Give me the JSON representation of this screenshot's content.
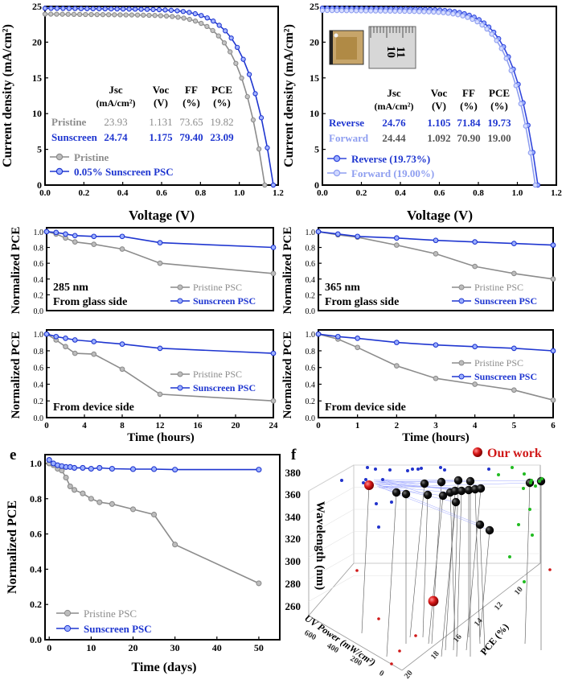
{
  "colors": {
    "pristine": "#8c8c8c",
    "sunscreen": "#1f36d0",
    "reverse": "#3146dc",
    "forward": "#8e9ef0",
    "our_work": "#d01818",
    "green": "#22bb22",
    "black": "#111111"
  },
  "chart_data": [
    {
      "id": "a",
      "type": "line",
      "title": "",
      "xlabel": "Voltage (V)",
      "ylabel": "Current density (mA/cm²)",
      "xlim": [
        0,
        1.2
      ],
      "ylim": [
        0,
        25
      ],
      "xticks": [
        "0.0",
        "0.2",
        "0.4",
        "0.6",
        "0.8",
        "1.0",
        "1.2"
      ],
      "yticks": [
        "0",
        "5",
        "10",
        "15",
        "20",
        "25"
      ],
      "legend": [
        "Pristine",
        "0.05% Sunscreen PSC"
      ],
      "table": {
        "headers": [
          "Jsc",
          "Voc",
          "FF",
          "PCE"
        ],
        "units": [
          "(mA/cm²)",
          "(V)",
          "(%)",
          "(%)"
        ],
        "rows": [
          {
            "label": "Pristine",
            "values": [
              "23.93",
              "1.131",
              "73.65",
              "19.82"
            ]
          },
          {
            "label": "Sunscreen",
            "values": [
              "24.74",
              "1.175",
              "79.40",
              "23.09"
            ]
          }
        ]
      },
      "series": [
        {
          "name": "Pristine",
          "jsc": 23.93,
          "voc": 1.131
        },
        {
          "name": "0.05% Sunscreen PSC",
          "jsc": 24.74,
          "voc": 1.175
        }
      ]
    },
    {
      "id": "b",
      "type": "line",
      "title": "",
      "xlabel": "Voltage (V)",
      "ylabel": "Current density (mA/cm²)",
      "xlim": [
        0,
        1.2
      ],
      "ylim": [
        0,
        25
      ],
      "xticks": [
        "0.0",
        "0.2",
        "0.4",
        "0.6",
        "0.8",
        "1.0",
        "1.2"
      ],
      "yticks": [
        "0",
        "5",
        "10",
        "15",
        "20",
        "25"
      ],
      "legend": [
        "Reverse (19.73%)",
        "Forward (19.00%)"
      ],
      "inset_ruler_labels": [
        "10",
        "11"
      ],
      "table": {
        "headers": [
          "Jsc",
          "Voc",
          "FF",
          "PCE"
        ],
        "units": [
          "(mA/cm²)",
          "(V)",
          "(%)",
          "(%)"
        ],
        "rows": [
          {
            "label": "Reverse",
            "values": [
              "24.76",
              "1.105",
              "71.84",
              "19.73"
            ]
          },
          {
            "label": "Forward",
            "values": [
              "24.44",
              "1.092",
              "70.90",
              "19.00"
            ]
          }
        ]
      },
      "series": [
        {
          "name": "Reverse (19.73%)",
          "jsc": 24.76,
          "voc": 1.105
        },
        {
          "name": "Forward (19.00%)",
          "jsc": 24.44,
          "voc": 1.092
        }
      ]
    },
    {
      "id": "c",
      "type": "line",
      "xlabel": "Time (hours)",
      "ylabel": "Normalized PCE",
      "xticks": [
        "0",
        "4",
        "8",
        "12",
        "16",
        "20",
        "24"
      ],
      "yticks": [
        "0.0",
        "0.2",
        "0.4",
        "0.6",
        "0.8",
        "1.0"
      ],
      "xlim": [
        0,
        24
      ],
      "ylim": [
        0,
        1.05
      ],
      "top": {
        "labels": [
          "285 nm",
          "From glass side"
        ],
        "legend": [
          "Pristine PSC",
          "Sunscreen PSC"
        ],
        "series": [
          {
            "name": "Pristine PSC",
            "x": [
              0,
              1,
              2,
              3,
              5,
              8,
              12,
              24
            ],
            "values": [
              1.0,
              0.97,
              0.92,
              0.87,
              0.84,
              0.78,
              0.6,
              0.47
            ]
          },
          {
            "name": "Sunscreen PSC",
            "x": [
              0,
              1,
              2,
              3,
              5,
              8,
              12,
              24
            ],
            "values": [
              1.0,
              0.99,
              0.97,
              0.95,
              0.94,
              0.94,
              0.86,
              0.8
            ]
          }
        ]
      },
      "bottom": {
        "labels": [
          "From device side"
        ],
        "legend": [
          "Pristine PSC",
          "Sunscreen PSC"
        ],
        "series": [
          {
            "name": "Pristine PSC",
            "x": [
              0,
              1,
              2,
              3,
              5,
              8,
              12,
              24
            ],
            "values": [
              1.0,
              0.93,
              0.85,
              0.77,
              0.76,
              0.58,
              0.28,
              0.2
            ]
          },
          {
            "name": "Sunscreen PSC",
            "x": [
              0,
              1,
              2,
              3,
              5,
              8,
              12,
              24
            ],
            "values": [
              1.0,
              0.97,
              0.95,
              0.93,
              0.91,
              0.88,
              0.83,
              0.77
            ]
          }
        ]
      }
    },
    {
      "id": "d",
      "type": "line",
      "xlabel": "Time (hours)",
      "ylabel": "Normalized PCE",
      "xticks": [
        "0",
        "1",
        "2",
        "3",
        "4",
        "5",
        "6"
      ],
      "yticks": [
        "0.0",
        "0.2",
        "0.4",
        "0.6",
        "0.8",
        "1.0"
      ],
      "xlim": [
        0,
        6
      ],
      "ylim": [
        0,
        1.05
      ],
      "top": {
        "labels": [
          "365 nm",
          "From glass side"
        ],
        "legend": [
          "Pristine PSC",
          "Sunscreen PSC"
        ],
        "series": [
          {
            "name": "Pristine PSC",
            "x": [
              0,
              0.5,
              1,
              2,
              3,
              4,
              5,
              6
            ],
            "values": [
              1.0,
              0.96,
              0.93,
              0.83,
              0.72,
              0.56,
              0.47,
              0.4
            ]
          },
          {
            "name": "Sunscreen PSC",
            "x": [
              0,
              0.5,
              1,
              2,
              3,
              4,
              5,
              6
            ],
            "values": [
              1.0,
              0.97,
              0.94,
              0.92,
              0.89,
              0.87,
              0.85,
              0.83
            ]
          }
        ]
      },
      "bottom": {
        "labels": [
          "From device side"
        ],
        "legend": [
          "Pristine PSC",
          "Sunscreen PSC"
        ],
        "series": [
          {
            "name": "Pristine PSC",
            "x": [
              0,
              0.5,
              1,
              2,
              3,
              4,
              5,
              6
            ],
            "values": [
              1.0,
              0.94,
              0.84,
              0.62,
              0.47,
              0.4,
              0.33,
              0.21
            ]
          },
          {
            "name": "Sunscreen PSC",
            "x": [
              0,
              0.5,
              1,
              2,
              3,
              4,
              5,
              6
            ],
            "values": [
              1.0,
              0.97,
              0.95,
              0.9,
              0.87,
              0.85,
              0.83,
              0.8
            ]
          }
        ]
      }
    },
    {
      "id": "e",
      "type": "line",
      "panel_label": "e",
      "xlabel": "Time (days)",
      "ylabel": "Normalized PCE",
      "xticks": [
        "0",
        "10",
        "20",
        "30",
        "40",
        "50"
      ],
      "yticks": [
        "0.0",
        "0.2",
        "0.4",
        "0.6",
        "0.8",
        "1.0"
      ],
      "xlim": [
        -1,
        55
      ],
      "ylim": [
        0,
        1.05
      ],
      "legend": [
        "Pristine PSC",
        "Sunscreen PSC"
      ],
      "series": [
        {
          "name": "Pristine PSC",
          "x": [
            0,
            1,
            2,
            3,
            4,
            5,
            6,
            8,
            10,
            12,
            15,
            20,
            25,
            30,
            50
          ],
          "values": [
            1.0,
            0.99,
            0.97,
            0.96,
            0.92,
            0.87,
            0.85,
            0.83,
            0.8,
            0.78,
            0.77,
            0.74,
            0.71,
            0.54,
            0.32
          ]
        },
        {
          "name": "Sunscreen PSC",
          "x": [
            0,
            1,
            2,
            3,
            4,
            5,
            6,
            8,
            10,
            12,
            15,
            20,
            25,
            30,
            50
          ],
          "values": [
            1.02,
            1.0,
            0.99,
            0.985,
            0.98,
            0.98,
            0.975,
            0.975,
            0.97,
            0.975,
            0.97,
            0.968,
            0.968,
            0.965,
            0.965
          ]
        }
      ]
    },
    {
      "id": "f",
      "type": "scatter",
      "panel_label": "f",
      "title": "",
      "legend": [
        "Our work"
      ],
      "zlabel": "Wavelength (nm)",
      "xlabel": "UV Power (mW/cm²)",
      "ylabel": "PCE (%)",
      "zticks": [
        "260",
        "280",
        "300",
        "320",
        "340",
        "360",
        "380"
      ],
      "xticks": [
        "0",
        "200",
        "400",
        "600"
      ],
      "yticks": [
        "20",
        "18",
        "16",
        "14",
        "12",
        "10"
      ]
    }
  ]
}
